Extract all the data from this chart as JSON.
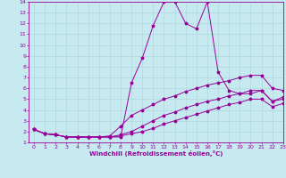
{
  "xlabel": "Windchill (Refroidissement éolien,°C)",
  "xlim": [
    -0.5,
    23
  ],
  "ylim": [
    1,
    14
  ],
  "xticks": [
    0,
    1,
    2,
    3,
    4,
    5,
    6,
    7,
    8,
    9,
    10,
    11,
    12,
    13,
    14,
    15,
    16,
    17,
    18,
    19,
    20,
    21,
    22,
    23
  ],
  "yticks": [
    1,
    2,
    3,
    4,
    5,
    6,
    7,
    8,
    9,
    10,
    11,
    12,
    13,
    14
  ],
  "bg_color": "#c6eaf0",
  "line_color": "#990099",
  "grid_color": "#b0d8de",
  "lines": [
    {
      "x": [
        0,
        1,
        2,
        3,
        4,
        5,
        6,
        7,
        8,
        9,
        10,
        11,
        12,
        13,
        14,
        15,
        16,
        17,
        18,
        19,
        20,
        21,
        22,
        23
      ],
      "y": [
        2.2,
        1.8,
        1.7,
        1.5,
        1.5,
        1.5,
        1.5,
        1.5,
        1.5,
        6.5,
        8.8,
        11.8,
        14.0,
        14.0,
        12.0,
        11.5,
        14.0,
        7.5,
        5.8,
        5.5,
        5.5,
        5.8,
        4.8,
        5.2
      ]
    },
    {
      "x": [
        0,
        1,
        2,
        3,
        4,
        5,
        6,
        7,
        8,
        9,
        10,
        11,
        12,
        13,
        14,
        15,
        16,
        17,
        18,
        19,
        20,
        21,
        22,
        23
      ],
      "y": [
        2.2,
        1.8,
        1.7,
        1.5,
        1.5,
        1.5,
        1.5,
        1.6,
        2.5,
        3.5,
        4.0,
        4.5,
        5.0,
        5.3,
        5.7,
        6.0,
        6.3,
        6.5,
        6.7,
        7.0,
        7.2,
        7.2,
        6.0,
        5.8
      ]
    },
    {
      "x": [
        0,
        1,
        2,
        3,
        4,
        5,
        6,
        7,
        8,
        9,
        10,
        11,
        12,
        13,
        14,
        15,
        16,
        17,
        18,
        19,
        20,
        21,
        22,
        23
      ],
      "y": [
        2.2,
        1.8,
        1.7,
        1.5,
        1.5,
        1.5,
        1.5,
        1.5,
        1.7,
        2.0,
        2.5,
        3.0,
        3.5,
        3.8,
        4.2,
        4.5,
        4.8,
        5.0,
        5.3,
        5.5,
        5.8,
        5.8,
        4.8,
        5.0
      ]
    },
    {
      "x": [
        0,
        1,
        2,
        3,
        4,
        5,
        6,
        7,
        8,
        9,
        10,
        11,
        12,
        13,
        14,
        15,
        16,
        17,
        18,
        19,
        20,
        21,
        22,
        23
      ],
      "y": [
        2.2,
        1.8,
        1.7,
        1.5,
        1.5,
        1.5,
        1.5,
        1.5,
        1.6,
        1.8,
        2.0,
        2.3,
        2.7,
        3.0,
        3.3,
        3.6,
        3.9,
        4.2,
        4.5,
        4.7,
        5.0,
        5.0,
        4.3,
        4.6
      ]
    }
  ]
}
